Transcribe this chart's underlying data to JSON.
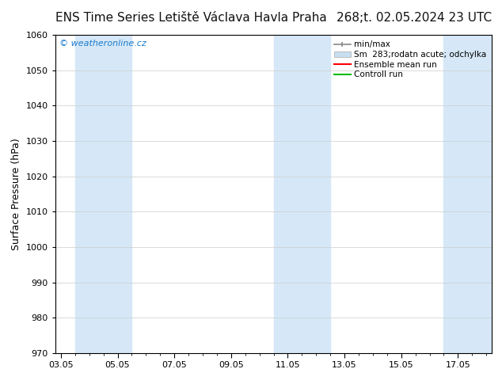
{
  "title_left": "ENS Time Series Letiště Václava Havla Praha",
  "title_right": "268;t. 02.05.2024 23 UTC",
  "ylabel": "Surface Pressure (hPa)",
  "xlabel_ticks": [
    "03.05",
    "05.05",
    "07.05",
    "09.05",
    "11.05",
    "13.05",
    "15.05",
    "17.05"
  ],
  "yticks": [
    970,
    980,
    990,
    1000,
    1010,
    1020,
    1030,
    1040,
    1050,
    1060
  ],
  "ylim": [
    970,
    1060
  ],
  "x_tick_positions": [
    0,
    2,
    4,
    6,
    8,
    10,
    12,
    14
  ],
  "xlim": [
    -0.2,
    15.2
  ],
  "background_color": "#ffffff",
  "plot_bg_color": "#ffffff",
  "watermark": "© weatheronline.cz",
  "watermark_color": "#1a7acc",
  "shaded_bands": [
    {
      "x_start": 0.5,
      "x_end": 2.5,
      "color": "#d6e8f7"
    },
    {
      "x_start": 7.5,
      "x_end": 9.5,
      "color": "#d6e8f7"
    },
    {
      "x_start": 13.5,
      "x_end": 15.2,
      "color": "#d6e8f7"
    }
  ],
  "legend_label_minmax": "min/max",
  "legend_label_sm": "Sm  283;rodatn acute; odchylka",
  "legend_label_ens": "Ensemble mean run",
  "legend_label_ctrl": "Controll run",
  "legend_color_minmax": "#888888",
  "legend_color_sm": "#c8dff0",
  "legend_color_ens": "#ff0000",
  "legend_color_ctrl": "#00bb00",
  "title_fontsize": 11,
  "tick_fontsize": 8,
  "ylabel_fontsize": 9,
  "watermark_fontsize": 8,
  "legend_fontsize": 7.5,
  "grid_color": "#cccccc",
  "border_color": "#000000"
}
